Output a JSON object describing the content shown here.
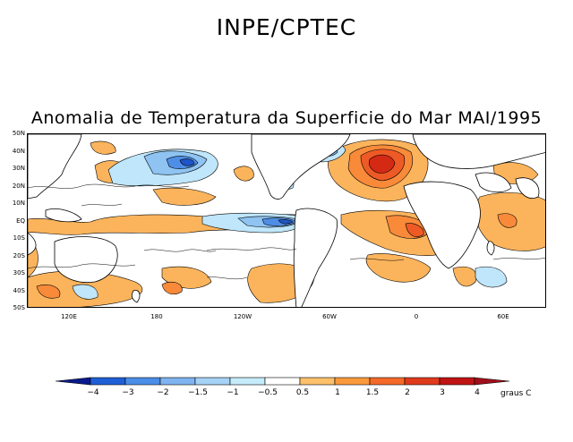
{
  "header": {
    "title": "INPE/CPTEC"
  },
  "map": {
    "title": "Anomalia de Temperatura da Superficie do Mar MAI/1995",
    "lat_labels": [
      "50N",
      "40N",
      "30N",
      "20N",
      "10N",
      "EQ",
      "10S",
      "20S",
      "30S",
      "40S",
      "50S"
    ],
    "lon_labels": [
      "120E",
      "180",
      "120W",
      "60W",
      "0",
      "60E"
    ]
  },
  "legend": {
    "units": "graus C",
    "labels": [
      "-4",
      "-3",
      "-2",
      "-1.5",
      "-1",
      "-0.5",
      "0.5",
      "1",
      "1.5",
      "2",
      "3",
      "4"
    ],
    "colors": [
      "#0a1a8c",
      "#1f5fd6",
      "#4b8ee8",
      "#7fb4f0",
      "#a6d2f6",
      "#c6ecfb",
      "#ffffff",
      "#fcc16a",
      "#fb9a3c",
      "#f56a2a",
      "#e03a1c",
      "#c01414",
      "#a0101c"
    ]
  },
  "anomaly_palette": {
    "warm_1": "#fcb45c",
    "warm_2": "#f98a3a",
    "warm_3": "#ee5a25",
    "warm_4": "#d42a14",
    "cool_1": "#bfe6fb",
    "cool_2": "#8ec3f2",
    "cool_3": "#4f8ee6",
    "cool_4": "#1f55c8"
  }
}
